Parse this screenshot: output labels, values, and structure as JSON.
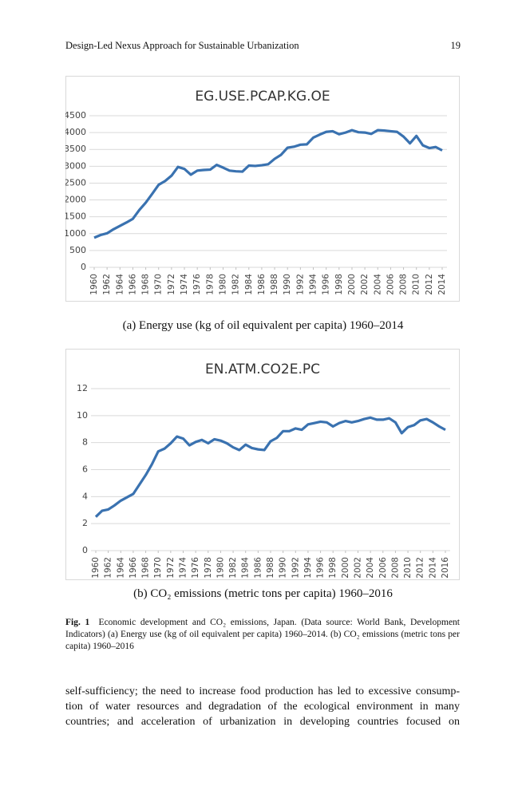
{
  "header": {
    "title": "Design-Led Nexus Approach for Sustainable Urbanization",
    "page": "19"
  },
  "chart_data": [
    {
      "type": "line",
      "title": "EG.USE.PCAP.KG.OE",
      "color": "#3a72b0",
      "grid": true,
      "x": [
        1960,
        1961,
        1962,
        1963,
        1964,
        1965,
        1966,
        1967,
        1968,
        1969,
        1970,
        1971,
        1972,
        1973,
        1974,
        1975,
        1976,
        1977,
        1978,
        1979,
        1980,
        1981,
        1982,
        1983,
        1984,
        1985,
        1986,
        1987,
        1988,
        1989,
        1990,
        1991,
        1992,
        1993,
        1994,
        1995,
        1996,
        1997,
        1998,
        1999,
        2000,
        2001,
        2002,
        2003,
        2004,
        2005,
        2006,
        2007,
        2008,
        2009,
        2010,
        2011,
        2012,
        2013,
        2014
      ],
      "values": [
        880,
        960,
        1010,
        1130,
        1230,
        1330,
        1440,
        1700,
        1920,
        2180,
        2450,
        2560,
        2720,
        2980,
        2920,
        2750,
        2870,
        2890,
        2900,
        3040,
        2960,
        2870,
        2850,
        2840,
        3020,
        3010,
        3030,
        3060,
        3220,
        3340,
        3550,
        3580,
        3640,
        3650,
        3850,
        3940,
        4020,
        4040,
        3950,
        4000,
        4070,
        4010,
        4000,
        3960,
        4070,
        4060,
        4040,
        4020,
        3880,
        3680,
        3900,
        3620,
        3540,
        3570,
        3470
      ],
      "xlim": [
        1960,
        2014
      ],
      "xticks": [
        1960,
        1962,
        1964,
        1966,
        1968,
        1970,
        1972,
        1974,
        1976,
        1978,
        1980,
        1982,
        1984,
        1986,
        1988,
        1990,
        1992,
        1994,
        1996,
        1998,
        2000,
        2002,
        2004,
        2006,
        2008,
        2010,
        2012,
        2014
      ],
      "ylim": [
        0,
        4500
      ],
      "yticks": [
        0,
        500,
        1000,
        1500,
        2000,
        2500,
        3000,
        3500,
        4000,
        4500
      ]
    },
    {
      "type": "line",
      "title": "EN.ATM.CO2E.PC",
      "color": "#3a72b0",
      "grid": true,
      "x": [
        1960,
        1961,
        1962,
        1963,
        1964,
        1965,
        1966,
        1967,
        1968,
        1969,
        1970,
        1971,
        1972,
        1973,
        1974,
        1975,
        1976,
        1977,
        1978,
        1979,
        1980,
        1981,
        1982,
        1983,
        1984,
        1985,
        1986,
        1987,
        1988,
        1989,
        1990,
        1991,
        1992,
        1993,
        1994,
        1995,
        1996,
        1997,
        1998,
        1999,
        2000,
        2001,
        2002,
        2003,
        2004,
        2005,
        2006,
        2007,
        2008,
        2009,
        2010,
        2011,
        2012,
        2013,
        2014,
        2015,
        2016
      ],
      "values": [
        2.5,
        2.95,
        3.05,
        3.35,
        3.7,
        3.95,
        4.2,
        4.9,
        5.6,
        6.4,
        7.35,
        7.55,
        7.95,
        8.45,
        8.3,
        7.8,
        8.05,
        8.2,
        7.95,
        8.25,
        8.15,
        7.95,
        7.65,
        7.45,
        7.85,
        7.6,
        7.5,
        7.45,
        8.1,
        8.35,
        8.85,
        8.85,
        9.05,
        8.95,
        9.35,
        9.45,
        9.55,
        9.5,
        9.2,
        9.45,
        9.6,
        9.5,
        9.6,
        9.75,
        9.85,
        9.7,
        9.7,
        9.8,
        9.5,
        8.7,
        9.15,
        9.3,
        9.65,
        9.75,
        9.5,
        9.2,
        8.95
      ],
      "xlim": [
        1960,
        2016
      ],
      "xticks": [
        1960,
        1962,
        1964,
        1966,
        1968,
        1970,
        1972,
        1974,
        1976,
        1978,
        1980,
        1982,
        1984,
        1986,
        1988,
        1990,
        1992,
        1994,
        1996,
        1998,
        2000,
        2002,
        2004,
        2006,
        2008,
        2010,
        2012,
        2014,
        2016
      ],
      "ylim": [
        0,
        12
      ],
      "yticks": [
        0,
        2,
        4,
        6,
        8,
        10,
        12
      ]
    }
  ],
  "subcaptions": [
    "(a) Energy use (kg of oil equivalent per capita) 1960–2014",
    "(b) CO₂ emissions (metric tons per capita) 1960–2016"
  ],
  "figure_caption": {
    "label": "Fig. 1",
    "text": "Economic development and CO₂ emissions, Japan. (Data source: World Bank, Development Indicators) (a) Energy use (kg of oil equivalent per capita) 1960–2014. (b) CO₂ emissions (metric tons per capita) 1960–2016"
  },
  "body": {
    "lines": [
      "self-sufficiency; the need to increase food production has led to excessive consump-",
      "tion of water resources and degradation of the ecological environment in many",
      "countries; and acceleration of urbanization in developing countries focused on"
    ]
  }
}
